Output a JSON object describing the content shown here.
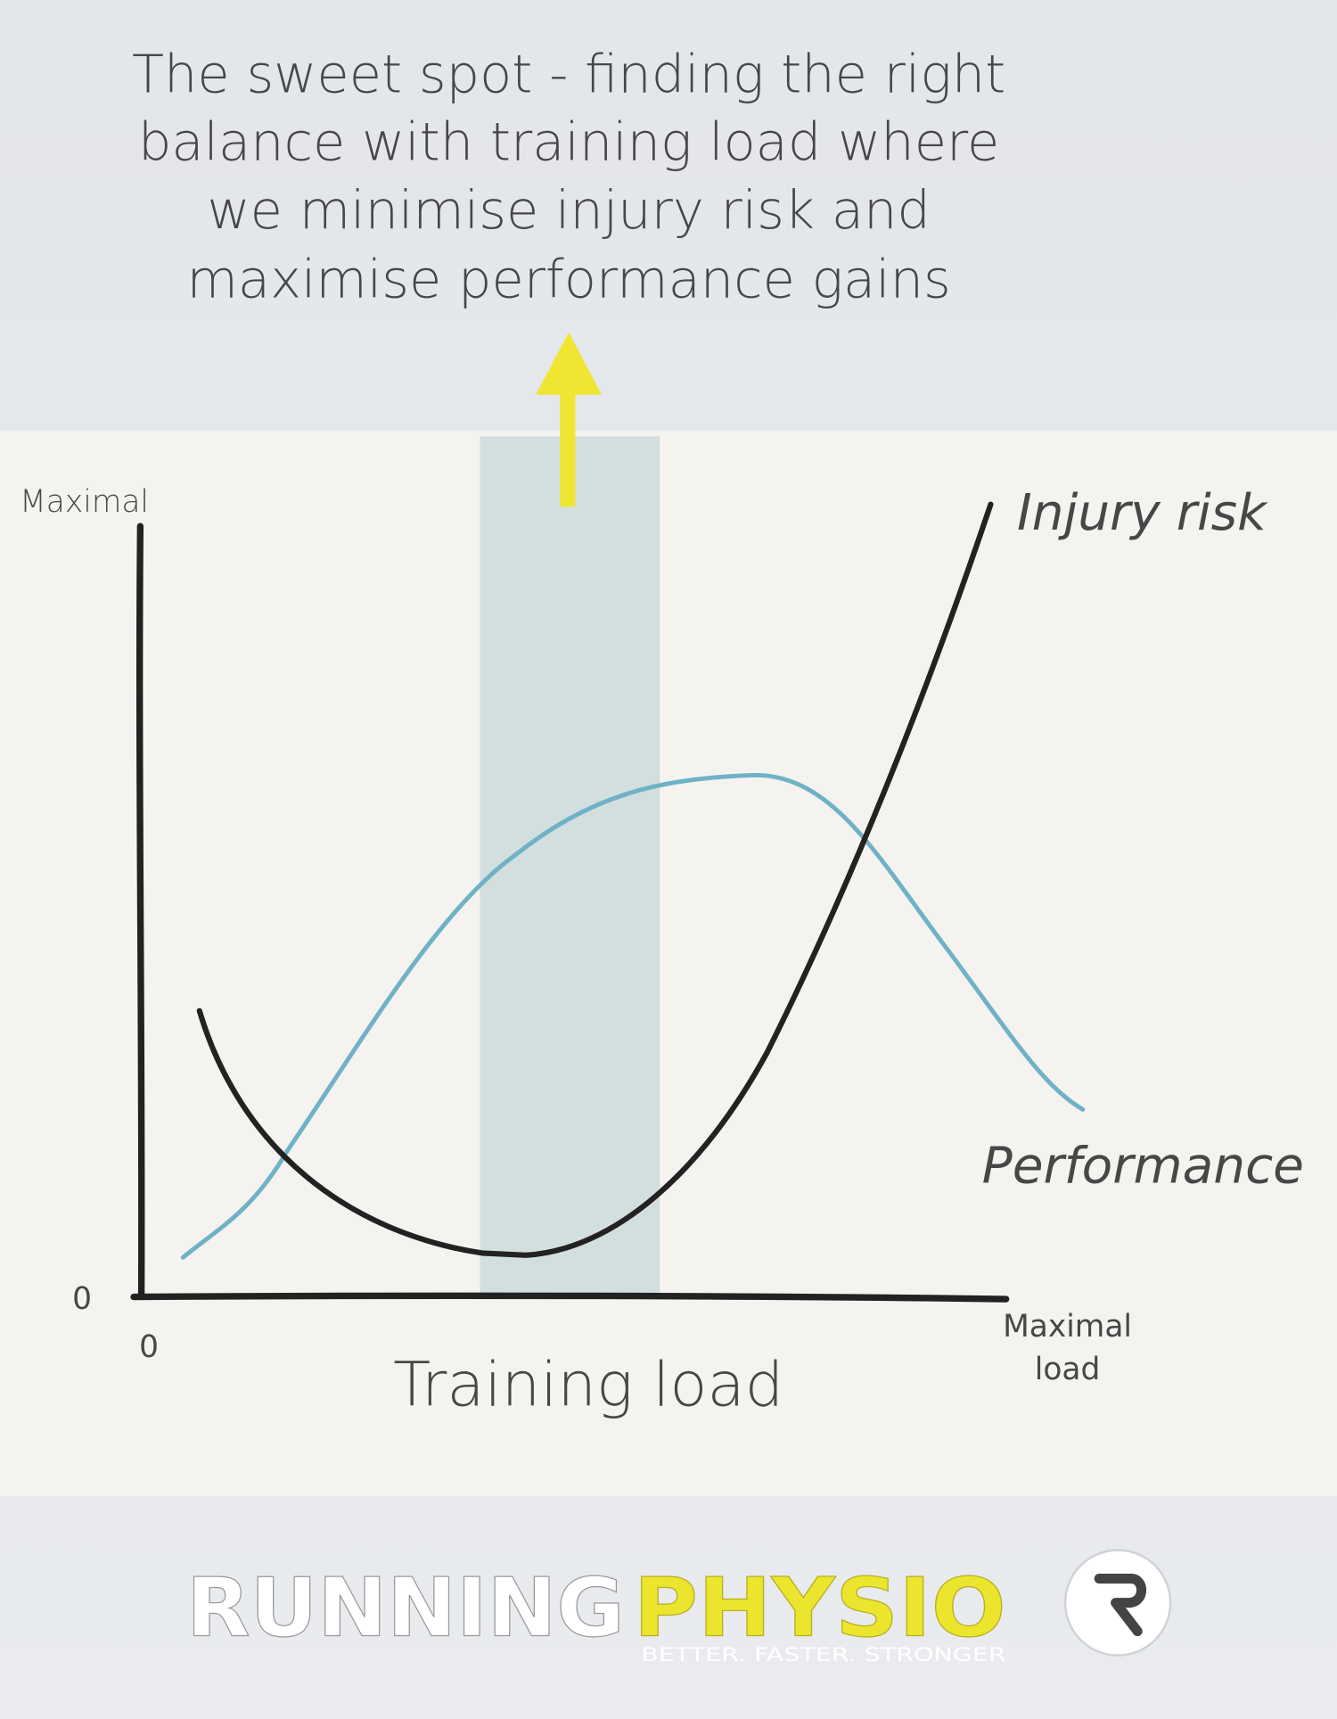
{
  "header": {
    "title_lines": [
      "The sweet spot - finding the right",
      "balance with training load where",
      "we minimise injury risk and",
      "maximise performance gains"
    ]
  },
  "diagram": {
    "y_axis_top": "Maximal",
    "y_axis_zero": "0",
    "x_axis_zero": "0",
    "x_axis_title": "Training load",
    "x_axis_end": [
      "Maximal",
      "load"
    ],
    "curve_injury": "Injury risk",
    "curve_performance": "Performance"
  },
  "footer": {
    "logo_left": "RUNNING",
    "logo_right": "PHYSIO",
    "tagline": "BETTER. FASTER. STRONGER"
  }
}
